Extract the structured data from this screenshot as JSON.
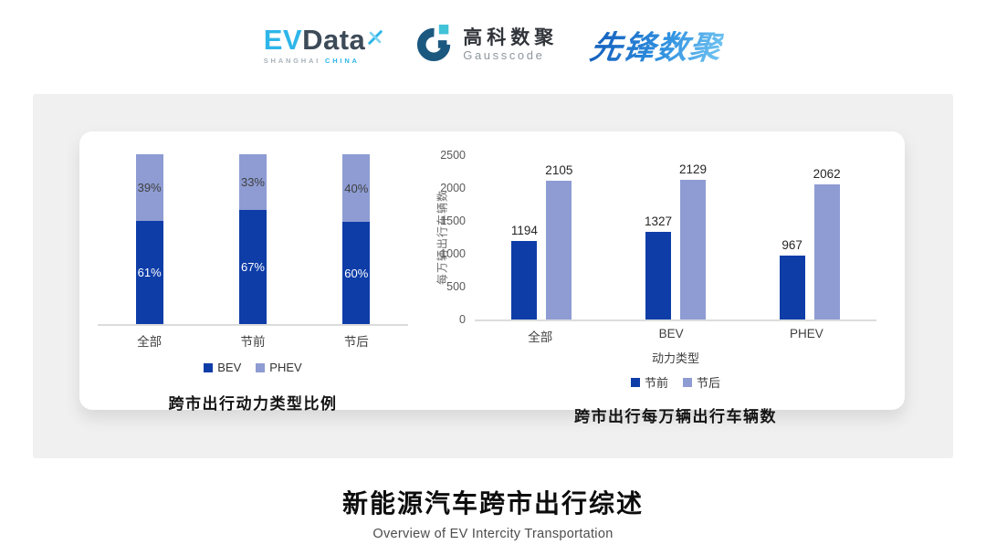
{
  "header": {
    "evdata": {
      "ev": "EV",
      "data": "Data",
      "sub_left": "SHANGHAI",
      "sub_right": "CHINA"
    },
    "gausscode": {
      "cn": "高科数聚",
      "en": "Gausscode"
    },
    "pioneer": {
      "text": "先锋数聚"
    }
  },
  "chart_data": [
    {
      "type": "bar",
      "subtype": "stacked-100",
      "title": "跨市出行动力类型比例",
      "categories": [
        "全部",
        "节前",
        "节后"
      ],
      "series": [
        {
          "name": "BEV",
          "values": [
            61,
            67,
            60
          ],
          "color": "#0E3DA8",
          "label_color": "#FFFFFF"
        },
        {
          "name": "PHEV",
          "values": [
            39,
            33,
            40
          ],
          "color": "#8E9CD3",
          "label_color": "#3F3F3F"
        }
      ],
      "value_suffix": "%",
      "ylim": [
        0,
        100
      ],
      "grid": false,
      "legend_position": "bottom"
    },
    {
      "type": "bar",
      "subtype": "grouped",
      "title": "跨市出行每万辆出行车辆数",
      "categories": [
        "全部",
        "BEV",
        "PHEV"
      ],
      "xlabel": "动力类型",
      "ylabel": "每万辆出行车辆数",
      "series": [
        {
          "name": "节前",
          "values": [
            1194,
            1327,
            967
          ],
          "color": "#0E3DA8"
        },
        {
          "name": "节后",
          "values": [
            2105,
            2129,
            2062
          ],
          "color": "#8E9CD3"
        }
      ],
      "ylim": [
        0,
        2500
      ],
      "yticks": [
        0,
        500,
        1000,
        1500,
        2000,
        2500
      ],
      "grid": false,
      "legend_position": "bottom"
    }
  ],
  "footer": {
    "title": "新能源汽车跨市出行综述",
    "subtitle": "Overview of EV Intercity Transportation"
  },
  "colors": {
    "bev_dark_blue": "#0E3DA8",
    "phev_light_blue": "#8E9CD3",
    "axis_line": "#DCDCDC",
    "tick_text": "#595959",
    "panel_bg": "#F0F0F1",
    "card_bg": "#FFFFFF",
    "evdata_blue": "#2EB6E9",
    "evdata_dark": "#3D4A58",
    "gausscode_navy": "#1B5880",
    "gausscode_cyan": "#41C3D8",
    "pioneer_blue": "#2B7FD0"
  }
}
